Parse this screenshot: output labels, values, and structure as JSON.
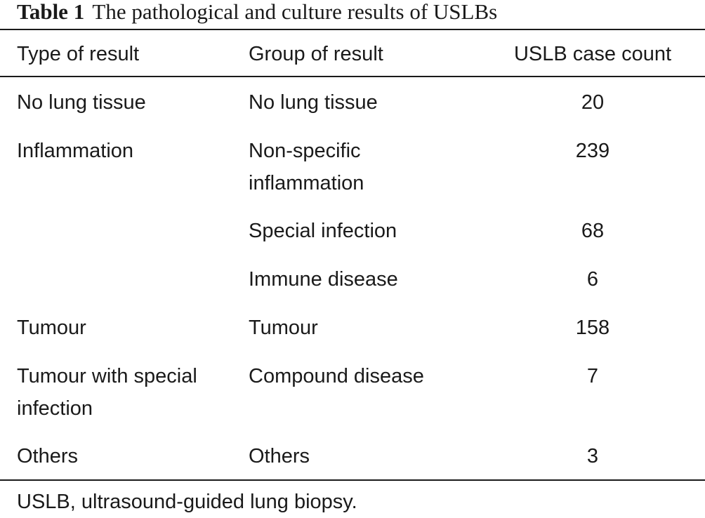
{
  "table": {
    "caption_label": "Table 1",
    "caption_text": "The pathological and culture results of USLBs",
    "headers": [
      "Type of result",
      "Group of result",
      "USLB case count"
    ],
    "rows": [
      {
        "type": "No lung tissue",
        "group": "No lung tissue",
        "count": "20"
      },
      {
        "type": "Inflammation",
        "group": "Non-specific inflammation",
        "count": "239"
      },
      {
        "type": "",
        "group": "Special infection",
        "count": "68"
      },
      {
        "type": "",
        "group": "Immune disease",
        "count": "6"
      },
      {
        "type": "Tumour",
        "group": "Tumour",
        "count": "158"
      },
      {
        "type": "Tumour with special infection",
        "group": "Compound disease",
        "count": "7"
      },
      {
        "type": "Others",
        "group": "Others",
        "count": "3"
      }
    ],
    "footnote": "USLB, ultrasound-guided lung biopsy."
  }
}
